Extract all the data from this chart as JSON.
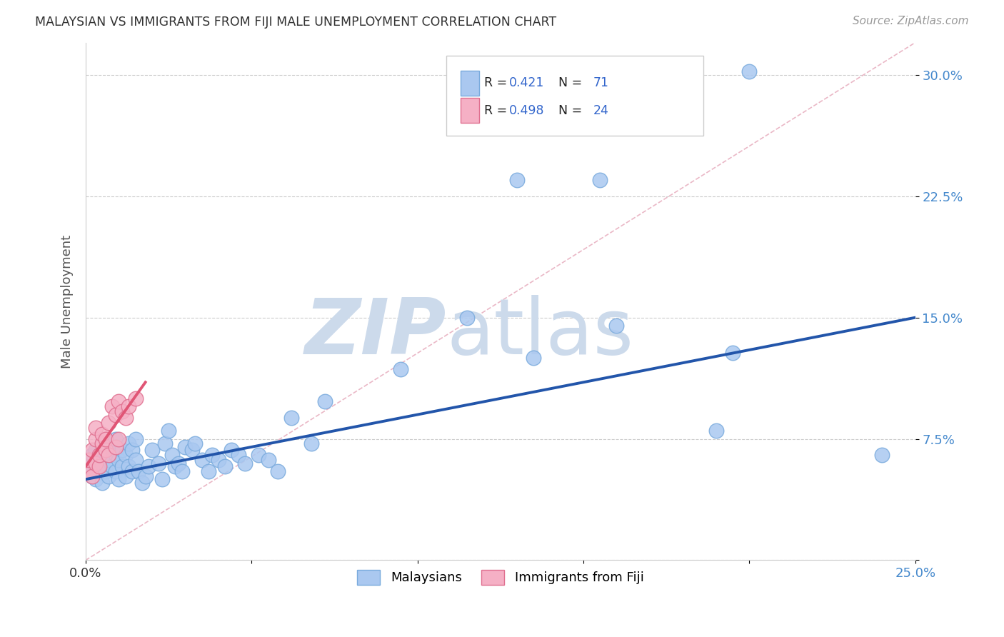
{
  "title": "MALAYSIAN VS IMMIGRANTS FROM FIJI MALE UNEMPLOYMENT CORRELATION CHART",
  "source": "Source: ZipAtlas.com",
  "ylabel": "Male Unemployment",
  "x_min": 0.0,
  "x_max": 0.25,
  "y_min": 0.0,
  "y_max": 0.32,
  "blue_R": 0.421,
  "blue_N": 71,
  "pink_R": 0.498,
  "pink_N": 24,
  "blue_color": "#aac8f0",
  "blue_edge_color": "#7aabdd",
  "pink_color": "#f5b0c5",
  "pink_edge_color": "#e07090",
  "blue_line_color": "#2255aa",
  "pink_line_color": "#e05575",
  "diag_line_color": "#e8b0c0",
  "legend_r_color": "#3366cc",
  "legend_n_color": "#3366cc",
  "watermark_zip_color": "#ccdaeb",
  "watermark_atlas_color": "#ccdaeb",
  "grid_color": "#cccccc",
  "title_color": "#333333",
  "source_color": "#999999",
  "ylabel_color": "#555555",
  "ytick_color": "#4488cc",
  "blue_x": [
    0.001,
    0.002,
    0.002,
    0.003,
    0.003,
    0.004,
    0.004,
    0.005,
    0.005,
    0.005,
    0.006,
    0.006,
    0.007,
    0.007,
    0.008,
    0.008,
    0.009,
    0.009,
    0.009,
    0.01,
    0.01,
    0.011,
    0.011,
    0.012,
    0.012,
    0.013,
    0.013,
    0.014,
    0.014,
    0.015,
    0.015,
    0.016,
    0.017,
    0.018,
    0.019,
    0.02,
    0.022,
    0.023,
    0.024,
    0.025,
    0.026,
    0.027,
    0.028,
    0.029,
    0.03,
    0.032,
    0.033,
    0.035,
    0.037,
    0.038,
    0.04,
    0.042,
    0.044,
    0.046,
    0.048,
    0.052,
    0.055,
    0.058,
    0.062,
    0.068,
    0.072,
    0.095,
    0.115,
    0.135,
    0.155,
    0.16,
    0.19,
    0.2,
    0.24,
    0.195,
    0.13
  ],
  "blue_y": [
    0.058,
    0.052,
    0.065,
    0.05,
    0.068,
    0.055,
    0.063,
    0.048,
    0.06,
    0.072,
    0.055,
    0.068,
    0.052,
    0.062,
    0.058,
    0.07,
    0.055,
    0.065,
    0.075,
    0.05,
    0.062,
    0.058,
    0.068,
    0.052,
    0.065,
    0.058,
    0.072,
    0.055,
    0.068,
    0.062,
    0.075,
    0.055,
    0.048,
    0.052,
    0.058,
    0.068,
    0.06,
    0.05,
    0.072,
    0.08,
    0.065,
    0.058,
    0.06,
    0.055,
    0.07,
    0.068,
    0.072,
    0.062,
    0.055,
    0.065,
    0.062,
    0.058,
    0.068,
    0.065,
    0.06,
    0.065,
    0.062,
    0.055,
    0.088,
    0.072,
    0.098,
    0.118,
    0.15,
    0.125,
    0.235,
    0.145,
    0.08,
    0.302,
    0.065,
    0.128,
    0.235
  ],
  "pink_x": [
    0.001,
    0.001,
    0.002,
    0.002,
    0.003,
    0.003,
    0.003,
    0.004,
    0.004,
    0.005,
    0.005,
    0.006,
    0.006,
    0.007,
    0.007,
    0.008,
    0.009,
    0.009,
    0.01,
    0.01,
    0.011,
    0.012,
    0.013,
    0.015
  ],
  "pink_y": [
    0.055,
    0.062,
    0.052,
    0.068,
    0.06,
    0.075,
    0.082,
    0.058,
    0.065,
    0.072,
    0.078,
    0.068,
    0.075,
    0.065,
    0.085,
    0.095,
    0.07,
    0.09,
    0.098,
    0.075,
    0.092,
    0.088,
    0.095,
    0.1
  ],
  "blue_line_x0": 0.0,
  "blue_line_y0": 0.05,
  "blue_line_x1": 0.25,
  "blue_line_y1": 0.15,
  "pink_line_x0": 0.0,
  "pink_line_y0": 0.058,
  "pink_line_x1": 0.018,
  "pink_line_y1": 0.11
}
